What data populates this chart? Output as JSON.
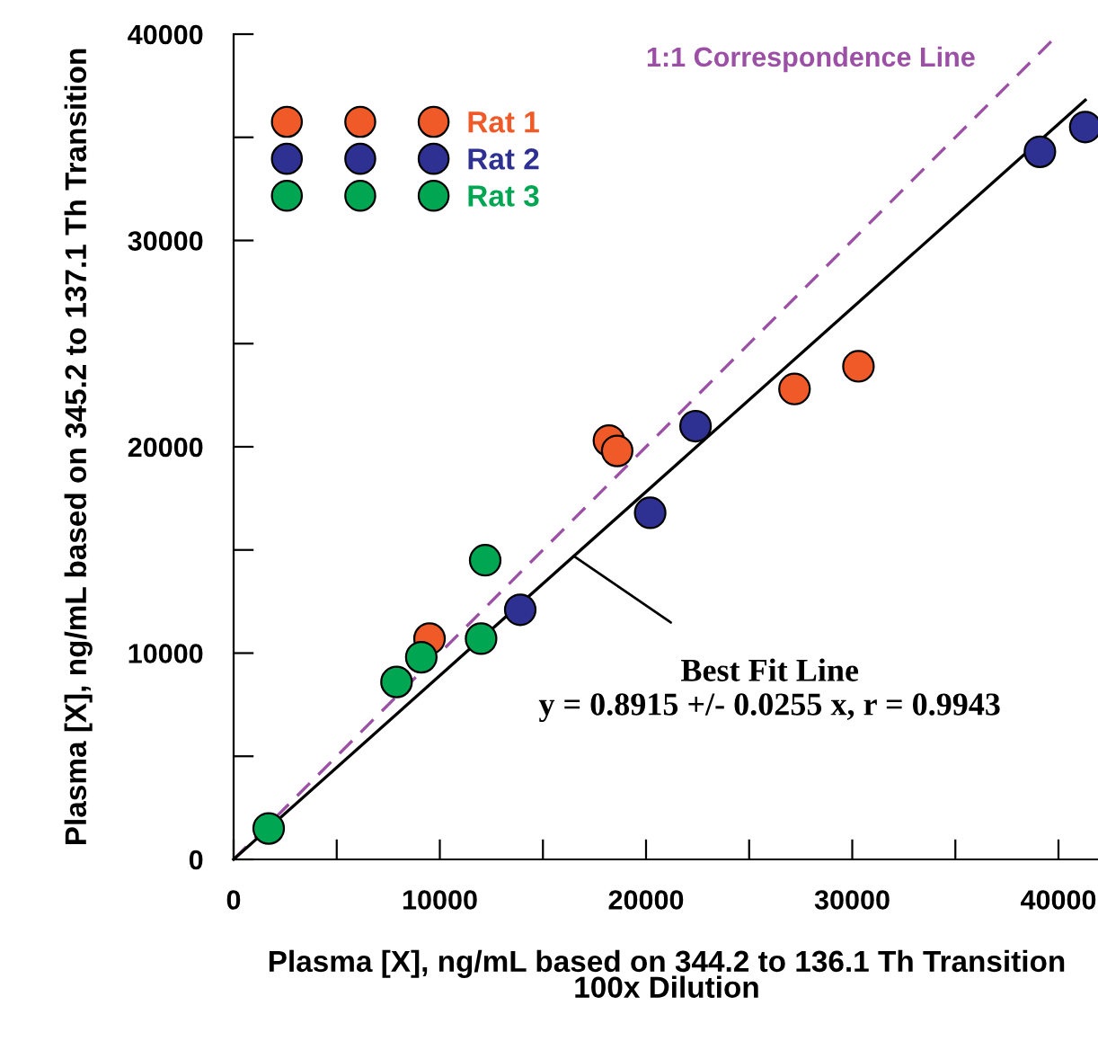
{
  "chart_data": {
    "type": "scatter",
    "xlabel": "Plasma [X], ng/mL based on 344.2 to 136.1 Th Transition\n100x Dilution",
    "ylabel": "Plasma [X], ng/mL based on 345.2 to 137.1 Th Transition",
    "xlim": [
      0,
      42000
    ],
    "ylim": [
      0,
      40000
    ],
    "xticks": [
      0,
      {
        "value": 5000,
        "label": null
      },
      10000,
      {
        "value": 15000,
        "label": null
      },
      20000,
      {
        "value": 25000,
        "label": null
      },
      30000,
      {
        "value": 35000,
        "label": null
      },
      40000
    ],
    "yticks": [
      0,
      {
        "value": 5000,
        "label": null
      },
      10000,
      {
        "value": 15000,
        "label": null
      },
      20000,
      {
        "value": 25000,
        "label": null
      },
      30000,
      {
        "value": 35000,
        "label": null
      },
      40000
    ],
    "grid": false,
    "legend": "top left",
    "marker": "circle",
    "series": [
      {
        "name": "Rat 1",
        "color": "#f05a28",
        "x": [
          9500,
          18200,
          18600,
          27200,
          30300
        ],
        "values": [
          10700,
          20300,
          19800,
          22800,
          23900
        ]
      },
      {
        "name": "Rat 2",
        "color": "#2e3192",
        "x": [
          22400,
          20200,
          13900,
          39100,
          41300
        ],
        "values": [
          21000,
          16800,
          12100,
          34300,
          35500
        ]
      },
      {
        "name": "Rat 3",
        "color": "#00a651",
        "x": [
          1700,
          7900,
          9100,
          12000,
          12200
        ],
        "values": [
          1500,
          8600,
          9800,
          10700,
          14500
        ]
      },
      {
        "name": "1:1 Correspondence Line",
        "type": "line",
        "marker": "none",
        "line_style": "dashed",
        "color": "#9b4fa5",
        "x": [
          0,
          40000
        ],
        "values": [
          0,
          40000
        ]
      },
      {
        "type": "line",
        "marker": "none",
        "line_style": "solid",
        "color": "#000000",
        "x": [
          0,
          41300
        ],
        "values": [
          0,
          36800
        ]
      }
    ],
    "annotations": [
      {
        "text": "Best Fit Line\ny = 0.8915 +/- 0.0255 x, r = 0.9943",
        "x": 16500,
        "y": 14700
      }
    ]
  }
}
